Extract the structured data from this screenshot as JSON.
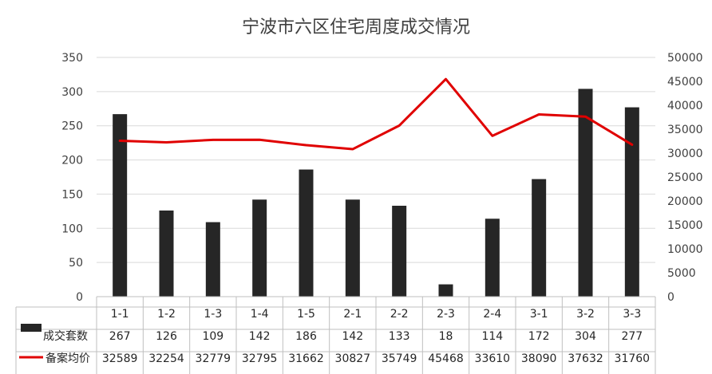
{
  "chart_data": {
    "type": "bar",
    "title": "宁波市六区住宅周度成交情况",
    "categories": [
      "1-1",
      "1-2",
      "1-3",
      "1-4",
      "1-5",
      "2-1",
      "2-2",
      "2-3",
      "2-4",
      "3-1",
      "3-2",
      "3-3"
    ],
    "series": [
      {
        "name": "成交套数",
        "type": "bar",
        "axis": "left",
        "color": "#262626",
        "values": [
          267,
          126,
          109,
          142,
          186,
          142,
          133,
          18,
          114,
          172,
          304,
          277
        ]
      },
      {
        "name": "备案均价",
        "type": "line",
        "axis": "right",
        "color": "#e00000",
        "values": [
          32589,
          32254,
          32779,
          32795,
          31662,
          30827,
          35749,
          45468,
          33610,
          38090,
          37632,
          31760
        ]
      }
    ],
    "ylim": [
      0,
      350
    ],
    "y_ticks": [
      0,
      50,
      100,
      150,
      200,
      250,
      300,
      350
    ],
    "y2lim": [
      0,
      50000
    ],
    "y2_ticks": [
      0,
      5000,
      10000,
      15000,
      20000,
      25000,
      30000,
      35000,
      40000,
      45000,
      50000
    ],
    "grid": true,
    "data_table": true
  }
}
